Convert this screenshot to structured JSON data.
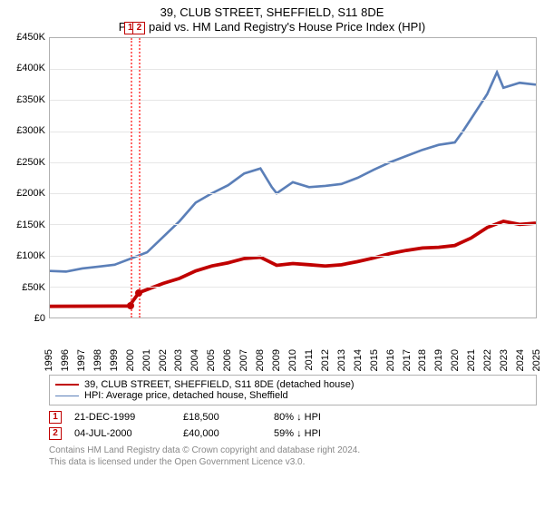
{
  "title": "39, CLUB STREET, SHEFFIELD, S11 8DE",
  "subtitle": "Price paid vs. HM Land Registry's House Price Index (HPI)",
  "chart": {
    "type": "line",
    "background_color": "#ffffff",
    "grid_color": "#e6e6e6",
    "border_color": "#b0b0b0",
    "x_years": [
      1995,
      1996,
      1997,
      1998,
      1999,
      2000,
      2001,
      2002,
      2003,
      2004,
      2005,
      2006,
      2007,
      2008,
      2009,
      2010,
      2011,
      2012,
      2013,
      2014,
      2015,
      2016,
      2017,
      2018,
      2019,
      2020,
      2021,
      2022,
      2023,
      2024,
      2025
    ],
    "y_ticks": [
      0,
      50000,
      100000,
      150000,
      200000,
      250000,
      300000,
      350000,
      400000,
      450000
    ],
    "y_tick_labels": [
      "£0",
      "£50K",
      "£100K",
      "£150K",
      "£200K",
      "£250K",
      "£300K",
      "£350K",
      "£400K",
      "£450K"
    ],
    "ylim": [
      0,
      450000
    ],
    "xlim": [
      1995,
      2025
    ],
    "label_fontsize": 11,
    "title_fontsize": 13,
    "series": [
      {
        "name": "price_paid",
        "legend_label": "39, CLUB STREET, SHEFFIELD, S11 8DE (detached house)",
        "color": "#c00000",
        "line_width": 2,
        "points": [
          [
            1995,
            18000
          ],
          [
            1999.9,
            18500
          ],
          [
            2000.5,
            40000
          ],
          [
            2001,
            45000
          ],
          [
            2002,
            55000
          ],
          [
            2003,
            63000
          ],
          [
            2004,
            75000
          ],
          [
            2005,
            83000
          ],
          [
            2006,
            88000
          ],
          [
            2007,
            95000
          ],
          [
            2008,
            97000
          ],
          [
            2009,
            84000
          ],
          [
            2010,
            87000
          ],
          [
            2011,
            85000
          ],
          [
            2012,
            83000
          ],
          [
            2013,
            85000
          ],
          [
            2014,
            90000
          ],
          [
            2015,
            96000
          ],
          [
            2016,
            103000
          ],
          [
            2017,
            108000
          ],
          [
            2018,
            112000
          ],
          [
            2019,
            113000
          ],
          [
            2020,
            116000
          ],
          [
            2021,
            128000
          ],
          [
            2022,
            145000
          ],
          [
            2023,
            155000
          ],
          [
            2024,
            150000
          ],
          [
            2025,
            152000
          ]
        ]
      },
      {
        "name": "hpi",
        "legend_label": "HPI: Average price, detached house, Sheffield",
        "color": "#5b7fb8",
        "line_width": 1.4,
        "points": [
          [
            1995,
            75000
          ],
          [
            1996,
            74000
          ],
          [
            1997,
            79000
          ],
          [
            1998,
            82000
          ],
          [
            1999,
            85000
          ],
          [
            2000,
            95000
          ],
          [
            2001,
            105000
          ],
          [
            2002,
            130000
          ],
          [
            2003,
            155000
          ],
          [
            2004,
            185000
          ],
          [
            2005,
            200000
          ],
          [
            2006,
            213000
          ],
          [
            2007,
            232000
          ],
          [
            2008,
            240000
          ],
          [
            2008.7,
            210000
          ],
          [
            2009,
            200000
          ],
          [
            2010,
            218000
          ],
          [
            2011,
            210000
          ],
          [
            2012,
            212000
          ],
          [
            2013,
            215000
          ],
          [
            2014,
            225000
          ],
          [
            2015,
            238000
          ],
          [
            2016,
            250000
          ],
          [
            2017,
            260000
          ],
          [
            2018,
            270000
          ],
          [
            2019,
            278000
          ],
          [
            2020,
            282000
          ],
          [
            2020.5,
            300000
          ],
          [
            2021,
            320000
          ],
          [
            2022,
            360000
          ],
          [
            2022.6,
            395000
          ],
          [
            2023,
            370000
          ],
          [
            2024,
            378000
          ],
          [
            2025,
            375000
          ]
        ]
      }
    ],
    "events": [
      {
        "id": "1",
        "x": 1999.97,
        "color": "#ff6a6a",
        "date": "21-DEC-1999",
        "price": "£18,500",
        "pct": "80% ↓ HPI"
      },
      {
        "id": "2",
        "x": 2000.51,
        "color": "#ff6a6a",
        "date": "04-JUL-2000",
        "price": "£40,000",
        "pct": "59% ↓ HPI"
      }
    ]
  },
  "attribution_line1": "Contains HM Land Registry data © Crown copyright and database right 2024.",
  "attribution_line2": "This data is licensed under the Open Government Licence v3.0."
}
